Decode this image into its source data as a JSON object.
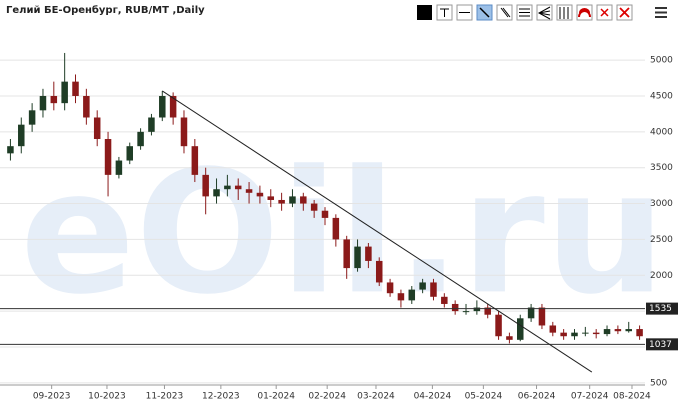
{
  "chart_data": {
    "type": "candlestick",
    "title": "Гелий БЕ-Оренбург, RUB/MT ,Daily",
    "watermark": "eOil.ru",
    "categories": [
      null,
      null,
      null,
      null,
      null,
      null,
      null,
      null,
      null,
      null,
      null,
      null,
      null,
      null,
      null,
      null,
      null,
      null,
      null,
      null,
      null,
      null,
      null,
      null,
      null,
      null,
      null,
      null,
      null,
      null,
      null,
      null,
      null,
      null,
      null,
      null,
      null,
      null,
      null,
      null,
      null,
      null,
      null,
      null,
      null,
      null,
      null,
      null,
      null,
      null,
      null,
      null,
      null,
      null,
      null,
      null,
      null,
      null,
      null
    ],
    "ohlc": [
      [
        3700,
        3900,
        3600,
        3800
      ],
      [
        3800,
        4200,
        3700,
        4100
      ],
      [
        4100,
        4400,
        4000,
        4300
      ],
      [
        4300,
        4600,
        4200,
        4500
      ],
      [
        4500,
        4700,
        4300,
        4400
      ],
      [
        4400,
        5100,
        4300,
        4700
      ],
      [
        4700,
        4800,
        4400,
        4500
      ],
      [
        4500,
        4600,
        4100,
        4200
      ],
      [
        4200,
        4300,
        3800,
        3900
      ],
      [
        3900,
        4000,
        3100,
        3400
      ],
      [
        3400,
        3650,
        3350,
        3600
      ],
      [
        3600,
        3850,
        3550,
        3800
      ],
      [
        3800,
        4050,
        3750,
        4000
      ],
      [
        4000,
        4250,
        3950,
        4200
      ],
      [
        4200,
        4570,
        4150,
        4500
      ],
      [
        4500,
        4550,
        4100,
        4200
      ],
      [
        4200,
        4300,
        3700,
        3800
      ],
      [
        3800,
        3900,
        3300,
        3400
      ],
      [
        3400,
        3500,
        2850,
        3100
      ],
      [
        3100,
        3350,
        3000,
        3200
      ],
      [
        3200,
        3400,
        3100,
        3250
      ],
      [
        3250,
        3350,
        3050,
        3200
      ],
      [
        3200,
        3300,
        3000,
        3150
      ],
      [
        3150,
        3250,
        3000,
        3100
      ],
      [
        3100,
        3200,
        2950,
        3050
      ],
      [
        3050,
        3150,
        2900,
        3000
      ],
      [
        3000,
        3200,
        2950,
        3100
      ],
      [
        3100,
        3150,
        2900,
        3000
      ],
      [
        3000,
        3050,
        2800,
        2900
      ],
      [
        2900,
        2950,
        2700,
        2800
      ],
      [
        2800,
        2850,
        2400,
        2500
      ],
      [
        2500,
        2550,
        1950,
        2100
      ],
      [
        2100,
        2500,
        2050,
        2400
      ],
      [
        2400,
        2450,
        2100,
        2200
      ],
      [
        2200,
        2250,
        1850,
        1900
      ],
      [
        1900,
        1950,
        1700,
        1750
      ],
      [
        1750,
        1800,
        1550,
        1650
      ],
      [
        1650,
        1850,
        1600,
        1800
      ],
      [
        1800,
        1950,
        1750,
        1900
      ],
      [
        1900,
        1950,
        1650,
        1700
      ],
      [
        1700,
        1750,
        1550,
        1600
      ],
      [
        1600,
        1650,
        1450,
        1500
      ],
      [
        1500,
        1600,
        1450,
        1500
      ],
      [
        1500,
        1650,
        1450,
        1550
      ],
      [
        1550,
        1600,
        1400,
        1450
      ],
      [
        1450,
        1500,
        1100,
        1150
      ],
      [
        1150,
        1200,
        1050,
        1100
      ],
      [
        1100,
        1450,
        1080,
        1400
      ],
      [
        1400,
        1600,
        1350,
        1550
      ],
      [
        1550,
        1600,
        1250,
        1300
      ],
      [
        1300,
        1350,
        1150,
        1200
      ],
      [
        1200,
        1250,
        1100,
        1150
      ],
      [
        1150,
        1250,
        1100,
        1200
      ],
      [
        1200,
        1280,
        1150,
        1200
      ],
      [
        1200,
        1250,
        1120,
        1180
      ],
      [
        1180,
        1300,
        1150,
        1250
      ],
      [
        1250,
        1300,
        1180,
        1220
      ],
      [
        1220,
        1350,
        1200,
        1250
      ],
      [
        1250,
        1300,
        1100,
        1150
      ]
    ],
    "up_color": "#1f3d26",
    "down_color": "#8b1a1a",
    "ylim": [
      470,
      5420
    ],
    "yticks": [
      500,
      1000,
      1500,
      2000,
      2500,
      3000,
      3500,
      4000,
      4500,
      5000
    ],
    "grid": true,
    "xticks": [
      {
        "value": 3.8,
        "label": "09-2023"
      },
      {
        "value": 8.9,
        "label": "10-2023"
      },
      {
        "value": 14.2,
        "label": "11-2023"
      },
      {
        "value": 19.4,
        "label": "12-2023"
      },
      {
        "value": 24.5,
        "label": "01-2024"
      },
      {
        "value": 29.2,
        "label": "02-2024"
      },
      {
        "value": 33.7,
        "label": "03-2024"
      },
      {
        "value": 38.9,
        "label": "04-2024"
      },
      {
        "value": 43.6,
        "label": "05-2024"
      },
      {
        "value": 48.5,
        "label": "06-2024"
      },
      {
        "value": 53.4,
        "label": "07-2024"
      },
      {
        "value": 57.3,
        "label": "08-2024"
      }
    ],
    "hlines": [
      1535,
      1037
    ],
    "trendline": {
      "x": [
        14,
        53.6
      ],
      "y": [
        4570,
        650
      ]
    }
  }
}
